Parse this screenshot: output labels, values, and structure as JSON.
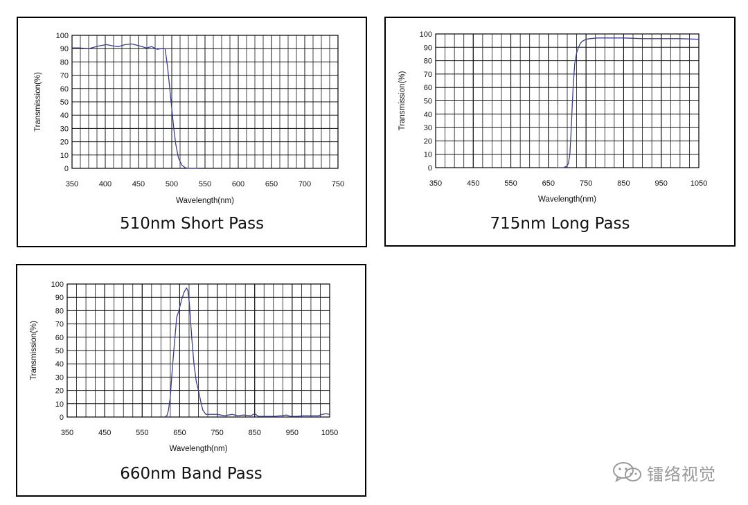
{
  "chart_data": [
    {
      "type": "line",
      "title": "510nm Short Pass",
      "xlabel": "Wavelength(nm)",
      "ylabel": "Transmission(%)",
      "xlim": [
        350,
        750
      ],
      "ylim": [
        0,
        100
      ],
      "x_ticks": [
        350,
        400,
        450,
        500,
        550,
        600,
        650,
        700,
        750
      ],
      "y_ticks": [
        0,
        10,
        20,
        30,
        40,
        50,
        60,
        70,
        80,
        90,
        100
      ],
      "grid": true,
      "line_color": "#3b3b8f",
      "series": [
        {
          "x": [
            350,
            360,
            375,
            390,
            402,
            412,
            420,
            430,
            440,
            448,
            455,
            462,
            470,
            478,
            484,
            490,
            494,
            497,
            500,
            503,
            506,
            510,
            515,
            520,
            525,
            530,
            540
          ],
          "y": [
            90.5,
            90.5,
            90,
            92,
            93,
            92,
            91.5,
            93,
            93.5,
            92.5,
            91.5,
            90.5,
            91.5,
            89.5,
            90,
            90,
            75,
            60,
            45,
            30,
            18,
            8,
            2.5,
            0.5,
            0,
            0,
            0
          ]
        }
      ]
    },
    {
      "type": "line",
      "title": "715nm Long Pass",
      "xlabel": "Wavelength(nm)",
      "ylabel": "Transmission(%)",
      "xlim": [
        350,
        1050
      ],
      "ylim": [
        0,
        100
      ],
      "x_ticks": [
        350,
        450,
        550,
        650,
        750,
        850,
        950,
        1050
      ],
      "y_ticks": [
        0,
        10,
        20,
        30,
        40,
        50,
        60,
        70,
        80,
        90,
        100
      ],
      "grid": true,
      "line_color": "#3b3b8f",
      "series": [
        {
          "x": [
            670,
            690,
            698,
            703,
            707,
            710,
            713,
            716,
            720,
            725,
            730,
            735,
            740,
            750,
            760,
            780,
            800,
            850,
            900,
            950,
            1000,
            1050
          ],
          "y": [
            0,
            0,
            1,
            3,
            10,
            25,
            45,
            62,
            78,
            86,
            90,
            93,
            94.5,
            96,
            96.5,
            97,
            97,
            97,
            96.5,
            96.5,
            96.5,
            96
          ]
        }
      ]
    },
    {
      "type": "line",
      "title": "660nm Band Pass",
      "xlabel": "Wavelength(nm)",
      "ylabel": "Transmission(%)",
      "xlim": [
        350,
        1050
      ],
      "ylim": [
        0,
        100
      ],
      "x_ticks": [
        350,
        450,
        550,
        650,
        750,
        850,
        950,
        1050
      ],
      "y_ticks": [
        0,
        10,
        20,
        30,
        40,
        50,
        60,
        70,
        80,
        90,
        100
      ],
      "grid": true,
      "line_color": "#3b3b8f",
      "series": [
        {
          "x": [
            610,
            616,
            620,
            625,
            630,
            636,
            642,
            648,
            655,
            662,
            668,
            672,
            676,
            682,
            688,
            694,
            700,
            706,
            712,
            720,
            735,
            750,
            770,
            790,
            805,
            820,
            840,
            850,
            860,
            880,
            900,
            920,
            935,
            945,
            960,
            980,
            1000,
            1020,
            1030,
            1040,
            1050
          ],
          "y": [
            0,
            1,
            5,
            15,
            35,
            55,
            75,
            80,
            88,
            94,
            97,
            95,
            85,
            60,
            40,
            27,
            20,
            12,
            5,
            2,
            2,
            2,
            1,
            2,
            1,
            1.5,
            1,
            2.5,
            0.5,
            0.5,
            0.5,
            1,
            1.5,
            0.5,
            0.5,
            1,
            1,
            1,
            2,
            2.5,
            2
          ]
        }
      ]
    }
  ],
  "watermark": {
    "icon": "wechat-icon",
    "text": "镭络视觉"
  }
}
